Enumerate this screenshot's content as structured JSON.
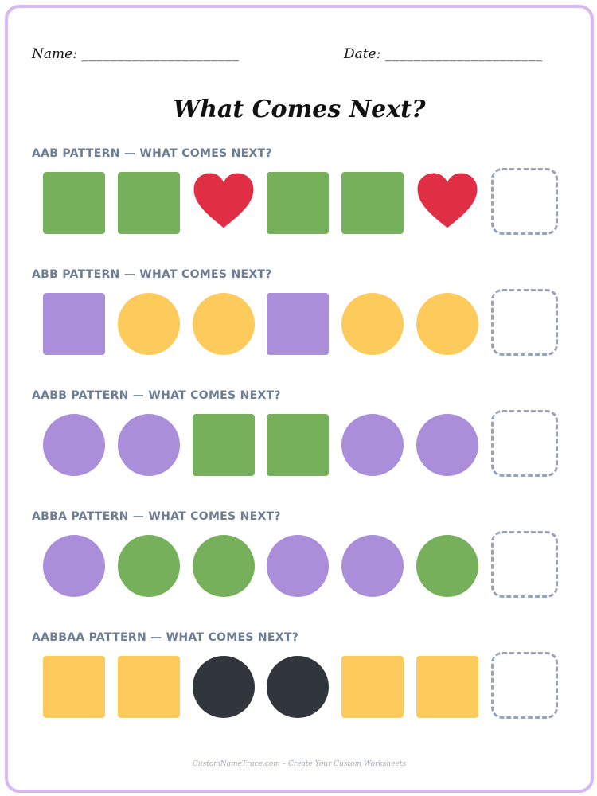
{
  "header": {
    "name_label": "Name:",
    "name_blank": "______________________",
    "date_label": "Date:",
    "date_blank": "______________________"
  },
  "title": "What Comes Next?",
  "colors": {
    "green": "#77b05a",
    "red": "#e02f45",
    "purple": "#aa8ed9",
    "yellow": "#fdcb5b",
    "dark": "#31353c",
    "dashed_box": "#9aa4b8",
    "border": "#d7b8f3",
    "label": "#6b7c93"
  },
  "patterns": [
    {
      "label": "AAB PATTERN — WHAT COMES NEXT?",
      "items": [
        {
          "shape": "square",
          "color": "green",
          "icon": "green-square-icon"
        },
        {
          "shape": "square",
          "color": "green",
          "icon": "green-square-icon"
        },
        {
          "shape": "heart",
          "color": "red",
          "icon": "red-heart-icon"
        },
        {
          "shape": "square",
          "color": "green",
          "icon": "green-square-icon"
        },
        {
          "shape": "square",
          "color": "green",
          "icon": "green-square-icon"
        },
        {
          "shape": "heart",
          "color": "red",
          "icon": "red-heart-icon"
        }
      ]
    },
    {
      "label": "ABB PATTERN — WHAT COMES NEXT?",
      "items": [
        {
          "shape": "square",
          "color": "purple",
          "icon": "purple-square-icon"
        },
        {
          "shape": "circle",
          "color": "yellow",
          "icon": "yellow-circle-icon"
        },
        {
          "shape": "circle",
          "color": "yellow",
          "icon": "yellow-circle-icon"
        },
        {
          "shape": "square",
          "color": "purple",
          "icon": "purple-square-icon"
        },
        {
          "shape": "circle",
          "color": "yellow",
          "icon": "yellow-circle-icon"
        },
        {
          "shape": "circle",
          "color": "yellow",
          "icon": "yellow-circle-icon"
        }
      ]
    },
    {
      "label": "AABB PATTERN — WHAT COMES NEXT?",
      "items": [
        {
          "shape": "circle",
          "color": "purple",
          "icon": "purple-circle-icon"
        },
        {
          "shape": "circle",
          "color": "purple",
          "icon": "purple-circle-icon"
        },
        {
          "shape": "square",
          "color": "green",
          "icon": "green-square-icon"
        },
        {
          "shape": "square",
          "color": "green",
          "icon": "green-square-icon"
        },
        {
          "shape": "circle",
          "color": "purple",
          "icon": "purple-circle-icon"
        },
        {
          "shape": "circle",
          "color": "purple",
          "icon": "purple-circle-icon"
        }
      ]
    },
    {
      "label": "ABBA PATTERN — WHAT COMES NEXT?",
      "items": [
        {
          "shape": "circle",
          "color": "purple",
          "icon": "purple-circle-icon"
        },
        {
          "shape": "circle",
          "color": "green",
          "icon": "green-circle-icon"
        },
        {
          "shape": "circle",
          "color": "green",
          "icon": "green-circle-icon"
        },
        {
          "shape": "circle",
          "color": "purple",
          "icon": "purple-circle-icon"
        },
        {
          "shape": "circle",
          "color": "purple",
          "icon": "purple-circle-icon"
        },
        {
          "shape": "circle",
          "color": "green",
          "icon": "green-circle-icon"
        }
      ]
    },
    {
      "label": "AABBAA PATTERN — WHAT COMES NEXT?",
      "items": [
        {
          "shape": "square",
          "color": "yellow",
          "icon": "yellow-square-icon"
        },
        {
          "shape": "square",
          "color": "yellow",
          "icon": "yellow-square-icon"
        },
        {
          "shape": "circle",
          "color": "dark",
          "icon": "black-circle-icon"
        },
        {
          "shape": "circle",
          "color": "dark",
          "icon": "black-circle-icon"
        },
        {
          "shape": "square",
          "color": "yellow",
          "icon": "yellow-square-icon"
        },
        {
          "shape": "square",
          "color": "yellow",
          "icon": "yellow-square-icon"
        }
      ]
    }
  ],
  "footer": "CustomNameTrace.com – Create Your Custom Worksheets"
}
